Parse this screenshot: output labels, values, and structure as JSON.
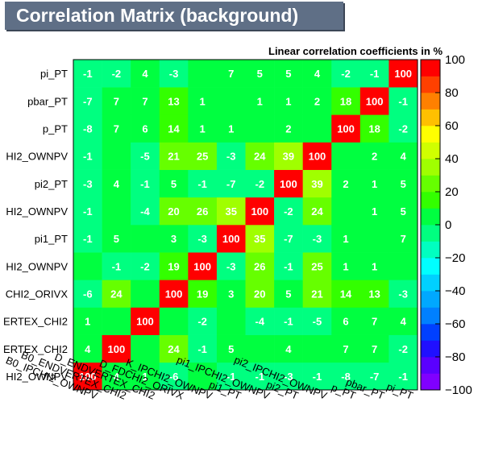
{
  "title": "Correlation Matrix (background)",
  "chart_data": {
    "type": "heatmap",
    "title": "Correlation Matrix (background)",
    "subtitle": "Linear correlation coefficients in %",
    "variables": [
      "B0_IPCHI2_OWNPV",
      "B0_ENDVERTEX_CHI2",
      "D_ENDVERTEX_CHI2",
      "D_FDCHI2_ORIVX",
      "K_IPCHI2_OWNPV",
      "pi1_PT",
      "pi1_IPCHI2_OWNPV",
      "pi2_PT",
      "pi2_IPCHI2_OWNPV",
      "p_PT",
      "pbar_PT",
      "pi_PT"
    ],
    "y_tick_labels": [
      "HI2_OWNPV",
      "ERTEX_CHI2",
      "ERTEX_CHI2",
      "CHI2_ORIVX",
      "HI2_OWNPV",
      "pi1_PT",
      "HI2_OWNPV",
      "pi2_PT",
      "HI2_OWNPV",
      "p_PT",
      "pbar_PT",
      "pi_PT"
    ],
    "x_tick_labels": [
      "B0_IPCHI2_OWNPV",
      "B0_ENDVERTEX_CHI2",
      "D_ENDVERTEX_CHI2",
      "D_FDCHI2_ORIVX",
      "K_IPCHI2_OWNPV",
      "pi1_PT",
      "pi1_IPCHI2_OWNPV",
      "pi2_PT",
      "pi2_IPCHI2_OWNPV",
      "p_PT",
      "pbar_PT",
      "pi_PT"
    ],
    "matrix": [
      [
        100,
        4,
        1,
        -6,
        0,
        -1,
        -1,
        -3,
        -1,
        -8,
        -7,
        -1
      ],
      [
        4,
        100,
        0,
        24,
        -1,
        5,
        0,
        4,
        0,
        7,
        7,
        -2
      ],
      [
        1,
        0,
        100,
        0,
        -2,
        0,
        -4,
        -1,
        -5,
        6,
        7,
        4
      ],
      [
        -6,
        24,
        0,
        100,
        19,
        3,
        20,
        5,
        21,
        14,
        13,
        -3
      ],
      [
        0,
        -1,
        -2,
        19,
        100,
        -3,
        26,
        -1,
        25,
        1,
        1,
        0
      ],
      [
        -1,
        5,
        0,
        3,
        -3,
        100,
        35,
        -7,
        -3,
        1,
        0,
        7
      ],
      [
        -1,
        0,
        -4,
        20,
        26,
        35,
        100,
        -2,
        24,
        0,
        1,
        5
      ],
      [
        -3,
        4,
        -1,
        5,
        -1,
        -7,
        -2,
        100,
        39,
        2,
        1,
        5
      ],
      [
        -1,
        0,
        -5,
        21,
        25,
        -3,
        24,
        39,
        100,
        0,
        2,
        4
      ],
      [
        -8,
        7,
        6,
        14,
        1,
        1,
        0,
        2,
        0,
        100,
        18,
        -2
      ],
      [
        -7,
        7,
        7,
        13,
        1,
        0,
        1,
        1,
        2,
        18,
        100,
        -1
      ],
      [
        -1,
        -2,
        4,
        -3,
        0,
        7,
        5,
        5,
        4,
        -2,
        -1,
        100
      ]
    ],
    "zlim": [
      -100,
      100
    ],
    "z_ticks": [
      100,
      80,
      60,
      40,
      20,
      0,
      -20,
      -40,
      -60,
      -80,
      -100
    ],
    "legend_position": "right",
    "hidden_values": [
      0
    ],
    "z_tick_labels": [
      "100",
      "80",
      "60",
      "40",
      "20",
      "0",
      "−20",
      "−40",
      "−60",
      "−80",
      "−100"
    ]
  }
}
